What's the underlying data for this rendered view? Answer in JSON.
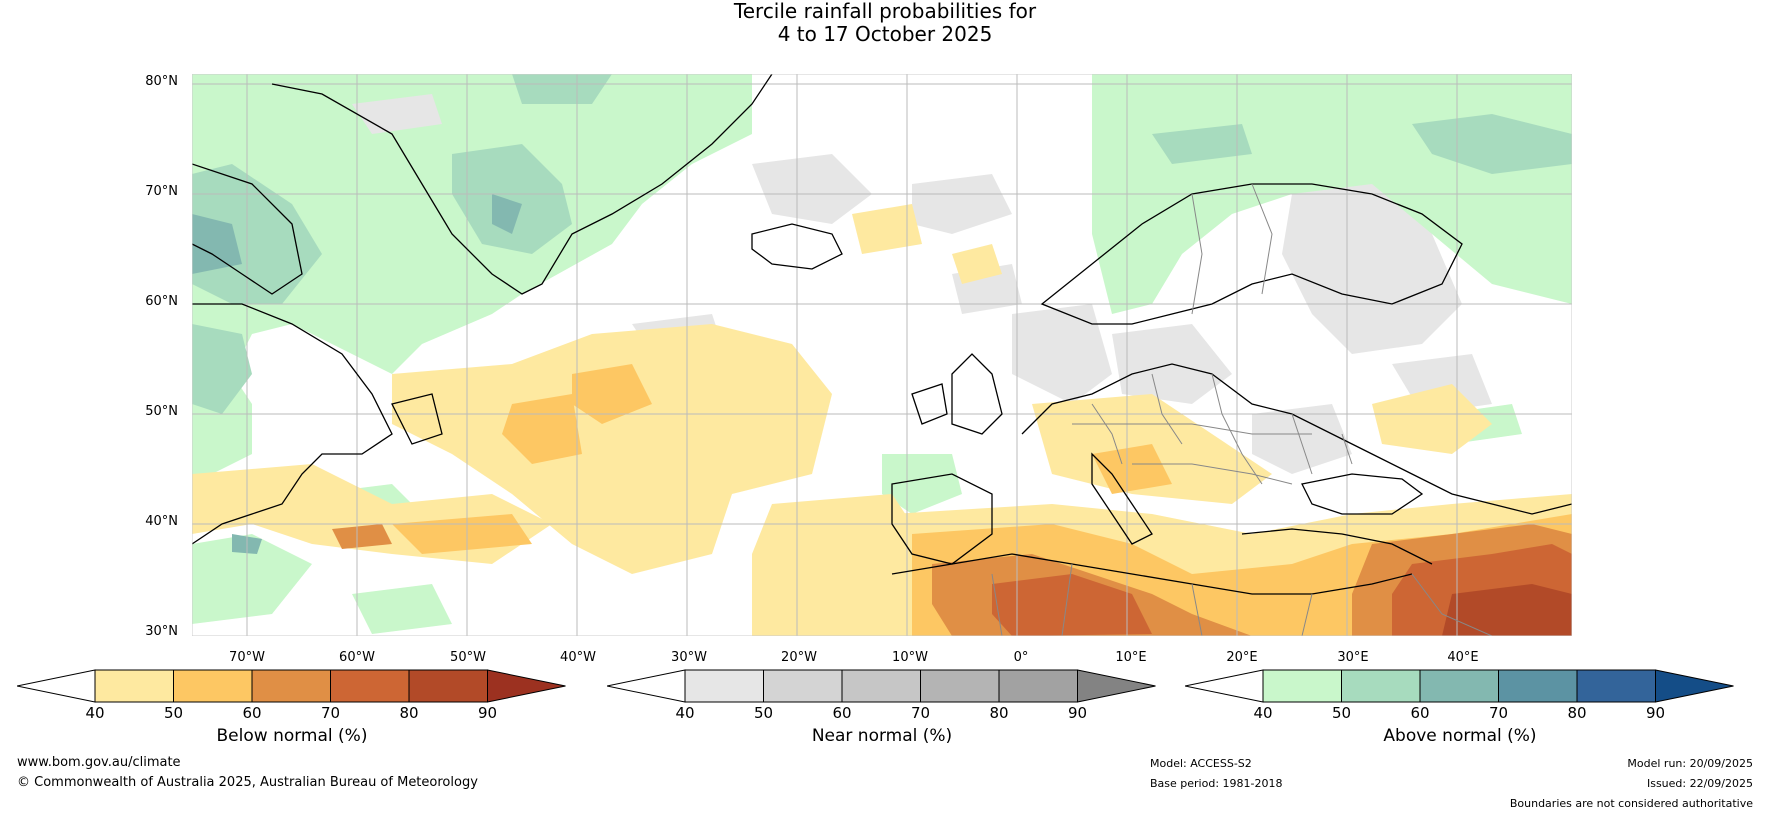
{
  "title": {
    "line1": "Tercile rainfall probabilities for",
    "line2": "4 to 17 October 2025"
  },
  "map": {
    "lat_labels": [
      "80°N",
      "70°N",
      "60°N",
      "50°N",
      "40°N",
      "30°N"
    ],
    "lon_labels": [
      "70°W",
      "60°W",
      "50°W",
      "40°W",
      "30°W",
      "20°W",
      "10°W",
      "0°",
      "10°E",
      "20°E",
      "30°E",
      "40°E"
    ],
    "colors": {
      "land_outline": "#000000",
      "border": "#888888",
      "grid": "#bbbbbb"
    }
  },
  "colorbars": [
    {
      "name": "below",
      "title": "Below normal (%)",
      "ticks": [
        "40",
        "50",
        "60",
        "70",
        "80",
        "90"
      ],
      "colors": [
        "#ffffff",
        "#fee9a0",
        "#fdc763",
        "#e08f45",
        "#cd6634",
        "#b24a28",
        "#9c3120"
      ]
    },
    {
      "name": "near",
      "title": "Near normal (%)",
      "ticks": [
        "40",
        "50",
        "60",
        "70",
        "80",
        "90"
      ],
      "colors": [
        "#ffffff",
        "#e6e6e6",
        "#d4d4d4",
        "#c6c6c6",
        "#b4b4b4",
        "#a2a2a2",
        "#838383"
      ]
    },
    {
      "name": "above",
      "title": "Above normal (%)",
      "ticks": [
        "40",
        "50",
        "60",
        "70",
        "80",
        "90"
      ],
      "colors": [
        "#ffffff",
        "#c9f7cb",
        "#a7dbbe",
        "#83b8b0",
        "#5c93a3",
        "#33649a",
        "#144d87"
      ]
    }
  ],
  "footer": {
    "url": "www.bom.gov.au/climate",
    "copyright": "© Commonwealth of Australia 2025, Australian Bureau of Meteorology",
    "model": "Model: ACCESS-S2",
    "base_period": "Base period: 1981-2018",
    "model_run": "Model run: 20/09/2025",
    "issued": "Issued: 22/09/2025",
    "disclaimer": "Boundaries are not considered authoritative"
  }
}
